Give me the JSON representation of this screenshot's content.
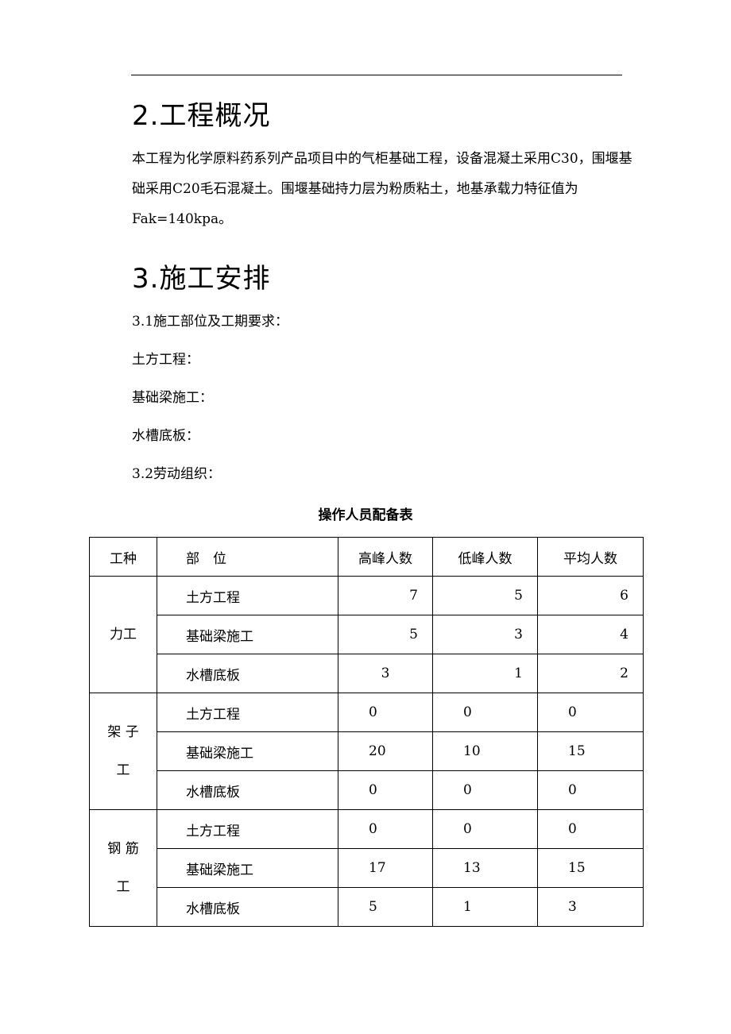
{
  "section2": {
    "title": "2.工程概况",
    "body": "本工程为化学原料药系列产品项目中的气柜基础工程，设备混凝土采用C30，围堰基础采用C20毛石混凝土。围堰基础持力层为粉质粘土，地基承载力特征值为Fak=140kpa。"
  },
  "section3": {
    "title": "3.施工安排",
    "s31": "3.1施工部位及工期要求：",
    "items": [
      "土方工程：",
      "基础梁施工：",
      "水槽底板："
    ],
    "s32": "3.2劳动组织："
  },
  "table": {
    "caption": "操作人员配备表",
    "headers": [
      "工种",
      "部　位",
      "高峰人数",
      "低峰人数",
      "平均人数"
    ],
    "groups": [
      {
        "name": "力工",
        "rows": [
          [
            "土方工程",
            "7",
            "5",
            "6"
          ],
          [
            "基础梁施工",
            "5",
            "3",
            "4"
          ],
          [
            "水槽底板",
            "3",
            "1",
            "2"
          ]
        ]
      },
      {
        "name": "架 子 工",
        "rows": [
          [
            "土方工程",
            "0",
            "0",
            "0"
          ],
          [
            "基础梁施工",
            "20",
            "10",
            "15"
          ],
          [
            "水槽底板",
            "0",
            "0",
            "0"
          ]
        ]
      },
      {
        "name": "钢 筋 工",
        "rows": [
          [
            "土方工程",
            "0",
            "0",
            "0"
          ],
          [
            "基础梁施工",
            "17",
            "13",
            "15"
          ],
          [
            "水槽底板",
            "5",
            "1",
            "3"
          ]
        ]
      }
    ]
  }
}
